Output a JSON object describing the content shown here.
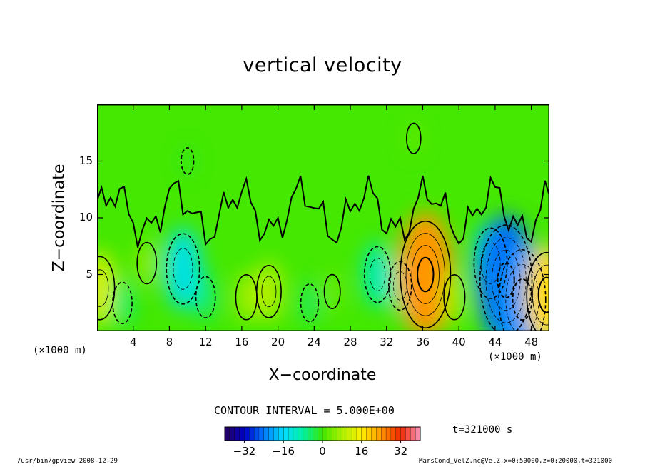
{
  "chart_data": {
    "type": "heatmap",
    "title": "vertical velocity",
    "xlabel": "X−coordinate",
    "ylabel": "Z−coordinate",
    "x_unit_left": "(×1000 m)",
    "x_unit_right": "(×1000 m)",
    "xlim": [
      0,
      50
    ],
    "ylim": [
      0,
      20
    ],
    "x_ticks": [
      4,
      8,
      12,
      16,
      20,
      24,
      28,
      32,
      36,
      40,
      44,
      48
    ],
    "y_ticks": [
      5,
      10,
      15
    ],
    "contour_interval": "CONTOUR INTERVAL = 5.000E+00",
    "colorbar_ticks": [
      "−32",
      "−16",
      "0",
      "16",
      "32"
    ],
    "colorbar_range": [
      -40,
      40
    ],
    "time_label": "t=321000 s",
    "features": [
      {
        "x": 0.3,
        "z": 3.8,
        "value": 12
      },
      {
        "x": 2.8,
        "z": 2.5,
        "value": -6
      },
      {
        "x": 5.5,
        "z": 6.0,
        "value": 6
      },
      {
        "x": 9.5,
        "z": 5.5,
        "value": -14
      },
      {
        "x": 12.0,
        "z": 3.0,
        "value": -6
      },
      {
        "x": 16.5,
        "z": 3.0,
        "value": 7
      },
      {
        "x": 19.0,
        "z": 3.5,
        "value": 9
      },
      {
        "x": 23.5,
        "z": 2.5,
        "value": -5
      },
      {
        "x": 26.0,
        "z": 3.5,
        "value": 4
      },
      {
        "x": 31.0,
        "z": 5.0,
        "value": -10
      },
      {
        "x": 33.5,
        "z": 4.0,
        "value": -8
      },
      {
        "x": 36.3,
        "z": 5.0,
        "value": 24
      },
      {
        "x": 39.5,
        "z": 3.0,
        "value": 7
      },
      {
        "x": 43.5,
        "z": 6.0,
        "value": -14
      },
      {
        "x": 45.2,
        "z": 4.5,
        "value": -25
      },
      {
        "x": 47.0,
        "z": 2.8,
        "value": -22
      },
      {
        "x": 49.7,
        "z": 3.2,
        "value": 18
      },
      {
        "x": 10.0,
        "z": 15.0,
        "value": -2
      },
      {
        "x": 35.0,
        "z": 17.0,
        "value": 3
      }
    ]
  },
  "footer": {
    "left": "/usr/bin/gpview   2008-12-29",
    "right": "MarsCond_VelZ.nc@VelZ,x=0:50000,z=0:20000,t=321000"
  }
}
